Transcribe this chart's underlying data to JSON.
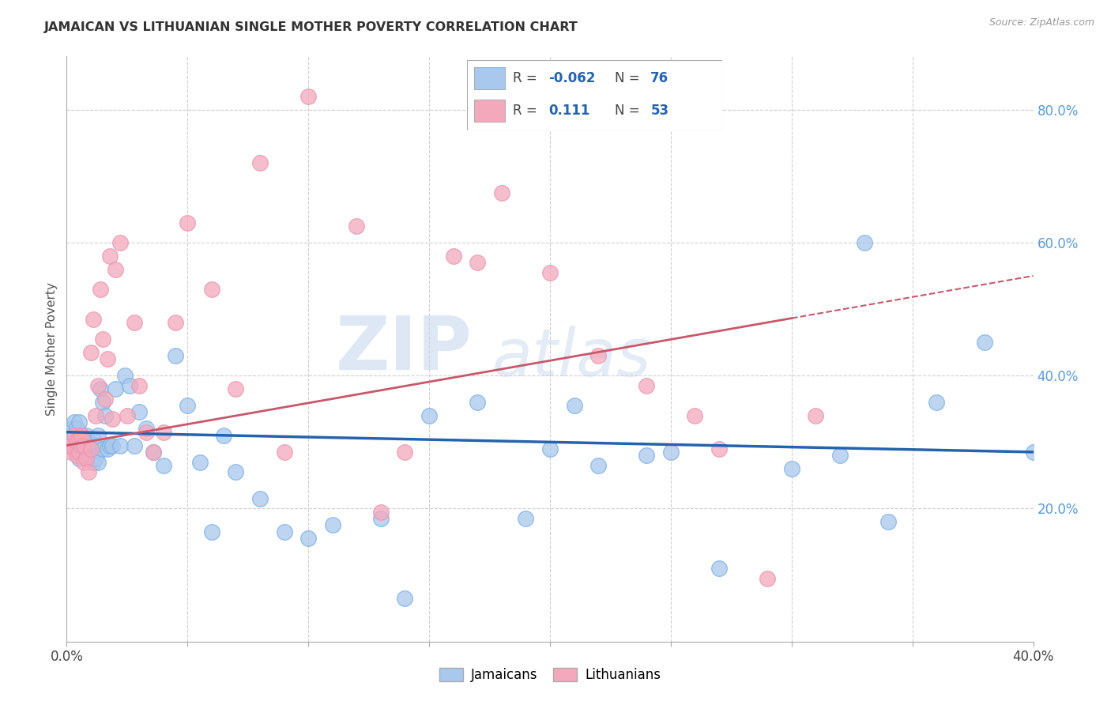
{
  "title": "JAMAICAN VS LITHUANIAN SINGLE MOTHER POVERTY CORRELATION CHART",
  "source": "Source: ZipAtlas.com",
  "ylabel": "Single Mother Poverty",
  "xlim": [
    0.0,
    0.4
  ],
  "ylim": [
    0.0,
    0.88
  ],
  "blue_color": "#A8C8EE",
  "pink_color": "#F4A8BC",
  "blue_line_color": "#2563AE",
  "pink_line_color": "#C8586A",
  "blue_marker_edge": "#7EB0E0",
  "pink_marker_edge": "#E898B0",
  "legend_R_blue": "-0.062",
  "legend_N_blue": "76",
  "legend_R_pink": "0.111",
  "legend_N_pink": "53",
  "watermark1": "ZIP",
  "watermark2": "atlas",
  "background_color": "#ffffff",
  "grid_color": "#d0d0d0",
  "blue_x": [
    0.001,
    0.002,
    0.002,
    0.003,
    0.003,
    0.003,
    0.004,
    0.004,
    0.004,
    0.005,
    0.005,
    0.005,
    0.005,
    0.006,
    0.006,
    0.006,
    0.007,
    0.007,
    0.007,
    0.008,
    0.008,
    0.008,
    0.009,
    0.009,
    0.01,
    0.01,
    0.011,
    0.011,
    0.012,
    0.012,
    0.013,
    0.013,
    0.014,
    0.015,
    0.015,
    0.016,
    0.017,
    0.018,
    0.019,
    0.02,
    0.022,
    0.024,
    0.026,
    0.028,
    0.03,
    0.033,
    0.036,
    0.04,
    0.045,
    0.05,
    0.055,
    0.06,
    0.065,
    0.07,
    0.08,
    0.09,
    0.1,
    0.11,
    0.13,
    0.14,
    0.15,
    0.17,
    0.19,
    0.2,
    0.21,
    0.22,
    0.24,
    0.25,
    0.27,
    0.3,
    0.32,
    0.33,
    0.34,
    0.36,
    0.38,
    0.4
  ],
  "blue_y": [
    0.31,
    0.295,
    0.32,
    0.29,
    0.31,
    0.33,
    0.285,
    0.3,
    0.32,
    0.295,
    0.305,
    0.275,
    0.33,
    0.295,
    0.285,
    0.31,
    0.295,
    0.28,
    0.305,
    0.28,
    0.295,
    0.31,
    0.275,
    0.3,
    0.28,
    0.295,
    0.27,
    0.305,
    0.295,
    0.275,
    0.31,
    0.27,
    0.38,
    0.36,
    0.29,
    0.34,
    0.29,
    0.295,
    0.295,
    0.38,
    0.295,
    0.4,
    0.385,
    0.295,
    0.345,
    0.32,
    0.285,
    0.265,
    0.43,
    0.355,
    0.27,
    0.165,
    0.31,
    0.255,
    0.215,
    0.165,
    0.155,
    0.175,
    0.185,
    0.065,
    0.34,
    0.36,
    0.185,
    0.29,
    0.355,
    0.265,
    0.28,
    0.285,
    0.11,
    0.26,
    0.28,
    0.6,
    0.18,
    0.36,
    0.45,
    0.285
  ],
  "pink_x": [
    0.001,
    0.002,
    0.003,
    0.003,
    0.004,
    0.004,
    0.005,
    0.005,
    0.006,
    0.006,
    0.007,
    0.007,
    0.008,
    0.009,
    0.01,
    0.01,
    0.011,
    0.012,
    0.013,
    0.014,
    0.015,
    0.016,
    0.017,
    0.018,
    0.019,
    0.02,
    0.022,
    0.025,
    0.028,
    0.03,
    0.033,
    0.036,
    0.04,
    0.045,
    0.05,
    0.06,
    0.07,
    0.08,
    0.09,
    0.1,
    0.12,
    0.13,
    0.14,
    0.16,
    0.17,
    0.18,
    0.2,
    0.22,
    0.24,
    0.26,
    0.27,
    0.29,
    0.31
  ],
  "pink_y": [
    0.295,
    0.285,
    0.31,
    0.29,
    0.28,
    0.3,
    0.285,
    0.305,
    0.295,
    0.31,
    0.27,
    0.295,
    0.275,
    0.255,
    0.29,
    0.435,
    0.485,
    0.34,
    0.385,
    0.53,
    0.455,
    0.365,
    0.425,
    0.58,
    0.335,
    0.56,
    0.6,
    0.34,
    0.48,
    0.385,
    0.315,
    0.285,
    0.315,
    0.48,
    0.63,
    0.53,
    0.38,
    0.72,
    0.285,
    0.82,
    0.625,
    0.195,
    0.285,
    0.58,
    0.57,
    0.675,
    0.555,
    0.43,
    0.385,
    0.34,
    0.29,
    0.095,
    0.34
  ]
}
